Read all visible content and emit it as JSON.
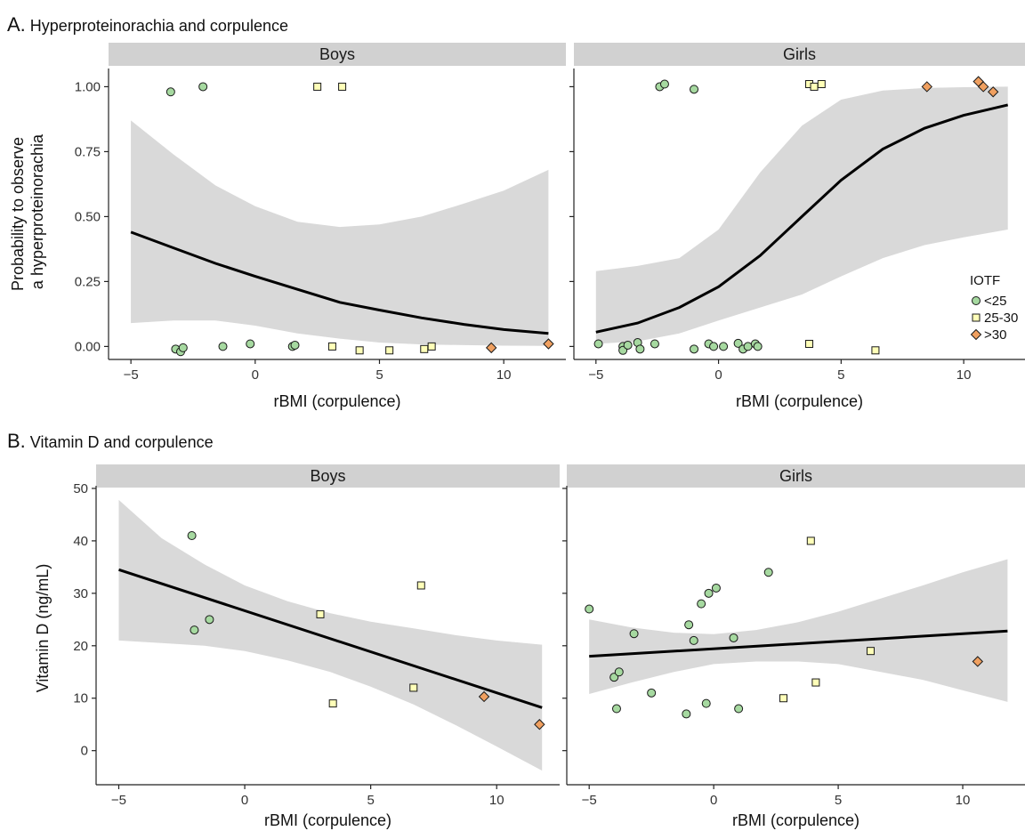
{
  "panels": [
    {
      "letter": "A.",
      "title": "Hyperproteinorachia and corpulence",
      "ylabel_lines": [
        "Probability to observe",
        "a hyperproteinorachia"
      ]
    },
    {
      "letter": "B.",
      "title": "Vitamin D and corpulence",
      "ylabel_lines": [
        "Vitamin D (ng/mL)"
      ]
    }
  ],
  "legend": {
    "title": "IOTF",
    "items": [
      {
        "label": "<25",
        "shape": "circle",
        "color": "#a6d9a0"
      },
      {
        "label": "25-30",
        "shape": "square",
        "color": "#ffffb8"
      },
      {
        "label": ">30",
        "shape": "diamond",
        "color": "#f0a060"
      }
    ]
  },
  "colors": {
    "circle": "#a6d9a0",
    "square": "#ffffb8",
    "diamond": "#f0a060",
    "band": "#d9d9d9",
    "strip": "#d1d1d1"
  },
  "chart_data": [
    {
      "type": "scatter",
      "panel": "A",
      "facet": "Boys",
      "xlabel": "rBMI (corpulence)",
      "ylabel": "Probability to observe a hyperproteinorachia",
      "xlim": [
        -5.9,
        12.5
      ],
      "ylim": [
        -0.05,
        1.07
      ],
      "xticks": [
        -5,
        0,
        5,
        10
      ],
      "yticks": [
        0.0,
        0.25,
        0.5,
        0.75,
        1.0
      ],
      "ytick_labels": [
        "0.00",
        "0.25",
        "0.50",
        "0.75",
        "1.00"
      ],
      "fit": {
        "x": [
          -5,
          -3.3,
          -1.6,
          0,
          1.7,
          3.4,
          5,
          6.7,
          8.4,
          10,
          11.8
        ],
        "y": [
          0.44,
          0.38,
          0.32,
          0.27,
          0.22,
          0.17,
          0.14,
          0.11,
          0.085,
          0.065,
          0.05
        ]
      },
      "band_upper": {
        "x": [
          -5,
          -3.3,
          -1.6,
          0,
          1.7,
          3.4,
          5,
          6.7,
          8.4,
          10,
          11.8
        ],
        "y": [
          0.87,
          0.74,
          0.62,
          0.54,
          0.48,
          0.46,
          0.47,
          0.5,
          0.55,
          0.6,
          0.68
        ]
      },
      "band_lower": {
        "x": [
          -5,
          -3.3,
          -1.6,
          0,
          1.7,
          3.4,
          5,
          6.7,
          8.4,
          10,
          11.8
        ],
        "y": [
          0.09,
          0.1,
          0.1,
          0.08,
          0.05,
          0.03,
          0.015,
          0.008,
          0.005,
          0.003,
          0.002
        ]
      },
      "points": [
        {
          "x": -3.4,
          "y": 0.98,
          "group": "<25"
        },
        {
          "x": -2.1,
          "y": 1.0,
          "group": "<25"
        },
        {
          "x": 2.5,
          "y": 1.0,
          "group": "25-30"
        },
        {
          "x": 3.5,
          "y": 1.0,
          "group": "25-30"
        },
        {
          "x": -3.2,
          "y": -0.01,
          "group": "<25"
        },
        {
          "x": -3.0,
          "y": -0.02,
          "group": "<25"
        },
        {
          "x": -2.9,
          "y": -0.005,
          "group": "<25"
        },
        {
          "x": -1.3,
          "y": 0.0,
          "group": "<25"
        },
        {
          "x": -0.2,
          "y": 0.01,
          "group": "<25"
        },
        {
          "x": 1.5,
          "y": 0.0,
          "group": "<25"
        },
        {
          "x": 1.6,
          "y": 0.005,
          "group": "<25"
        },
        {
          "x": 3.1,
          "y": 0.0,
          "group": "25-30"
        },
        {
          "x": 4.2,
          "y": -0.015,
          "group": "25-30"
        },
        {
          "x": 5.4,
          "y": -0.015,
          "group": "25-30"
        },
        {
          "x": 6.8,
          "y": -0.01,
          "group": "25-30"
        },
        {
          "x": 7.1,
          "y": 0.0,
          "group": "25-30"
        },
        {
          "x": 9.5,
          "y": -0.005,
          "group": ">30"
        },
        {
          "x": 11.8,
          "y": 0.01,
          "group": ">30"
        }
      ]
    },
    {
      "type": "scatter",
      "panel": "A",
      "facet": "Girls",
      "xlabel": "rBMI (corpulence)",
      "ylabel": "Probability to observe a hyperproteinorachia",
      "xlim": [
        -5.9,
        12.5
      ],
      "ylim": [
        -0.05,
        1.07
      ],
      "xticks": [
        -5,
        0,
        5,
        10
      ],
      "yticks": [
        0.0,
        0.25,
        0.5,
        0.75,
        1.0
      ],
      "ytick_labels": [
        "0.00",
        "0.25",
        "0.50",
        "0.75",
        "1.00"
      ],
      "fit": {
        "x": [
          -5,
          -3.3,
          -1.6,
          0,
          1.7,
          3.4,
          5,
          6.7,
          8.4,
          10,
          11.8
        ],
        "y": [
          0.055,
          0.09,
          0.15,
          0.23,
          0.35,
          0.5,
          0.64,
          0.76,
          0.84,
          0.89,
          0.93
        ]
      },
      "band_upper": {
        "x": [
          -5,
          -3.3,
          -1.6,
          0,
          1.7,
          3.4,
          5,
          6.7,
          8.4,
          10,
          11.8
        ],
        "y": [
          0.29,
          0.31,
          0.34,
          0.45,
          0.67,
          0.85,
          0.95,
          0.985,
          0.995,
          0.998,
          1.0
        ]
      },
      "band_lower": {
        "x": [
          -5,
          -3.3,
          -1.6,
          0,
          1.7,
          3.4,
          5,
          6.7,
          8.4,
          10,
          11.8
        ],
        "y": [
          0.01,
          0.02,
          0.05,
          0.1,
          0.15,
          0.2,
          0.27,
          0.34,
          0.39,
          0.42,
          0.45
        ]
      },
      "points": [
        {
          "x": -2.4,
          "y": 1.0,
          "group": "<25"
        },
        {
          "x": -2.2,
          "y": 1.01,
          "group": "<25"
        },
        {
          "x": -1.0,
          "y": 0.99,
          "group": "<25"
        },
        {
          "x": 3.7,
          "y": 1.01,
          "group": "25-30"
        },
        {
          "x": 3.9,
          "y": 1.0,
          "group": "25-30"
        },
        {
          "x": 4.2,
          "y": 1.01,
          "group": "25-30"
        },
        {
          "x": 8.5,
          "y": 1.0,
          "group": ">30"
        },
        {
          "x": 10.6,
          "y": 1.02,
          "group": ">30"
        },
        {
          "x": 10.8,
          "y": 1.0,
          "group": ">30"
        },
        {
          "x": 11.2,
          "y": 0.98,
          "group": ">30"
        },
        {
          "x": -4.9,
          "y": 0.01,
          "group": "<25"
        },
        {
          "x": -3.9,
          "y": 0.0,
          "group": "<25"
        },
        {
          "x": -3.9,
          "y": -0.015,
          "group": "<25"
        },
        {
          "x": -3.7,
          "y": 0.005,
          "group": "<25"
        },
        {
          "x": -3.3,
          "y": 0.015,
          "group": "<25"
        },
        {
          "x": -3.2,
          "y": -0.01,
          "group": "<25"
        },
        {
          "x": -2.6,
          "y": 0.01,
          "group": "<25"
        },
        {
          "x": -1.0,
          "y": -0.01,
          "group": "<25"
        },
        {
          "x": -0.4,
          "y": 0.01,
          "group": "<25"
        },
        {
          "x": -0.2,
          "y": 0.0,
          "group": "<25"
        },
        {
          "x": 0.2,
          "y": 0.0,
          "group": "<25"
        },
        {
          "x": 0.8,
          "y": 0.012,
          "group": "<25"
        },
        {
          "x": 1.0,
          "y": -0.01,
          "group": "<25"
        },
        {
          "x": 1.2,
          "y": 0.0,
          "group": "<25"
        },
        {
          "x": 1.5,
          "y": 0.01,
          "group": "<25"
        },
        {
          "x": 1.6,
          "y": 0.0,
          "group": "<25"
        },
        {
          "x": 3.7,
          "y": 0.01,
          "group": "25-30"
        },
        {
          "x": 6.4,
          "y": -0.015,
          "group": "25-30"
        }
      ]
    },
    {
      "type": "scatter",
      "panel": "B",
      "facet": "Boys",
      "xlabel": "rBMI (corpulence)",
      "ylabel": "Vitamin D (ng/mL)",
      "xlim": [
        -5.9,
        12.5
      ],
      "ylim": [
        -6.5,
        50.5
      ],
      "xticks": [
        -5,
        0,
        5,
        10
      ],
      "yticks": [
        0,
        10,
        20,
        30,
        40,
        50
      ],
      "ytick_labels": [
        "0",
        "10",
        "20",
        "30",
        "40",
        "50"
      ],
      "fit": {
        "x": [
          -5,
          11.8
        ],
        "y": [
          34.5,
          8.2
        ]
      },
      "band_upper": {
        "x": [
          -5,
          -3.3,
          -1.6,
          0,
          1.7,
          3.4,
          5,
          6.7,
          8.4,
          10,
          11.8
        ],
        "y": [
          47.8,
          40.5,
          35.5,
          31.5,
          28.5,
          26.2,
          24.6,
          23.3,
          22.0,
          21.0,
          20.2
        ]
      },
      "band_lower": {
        "x": [
          -5,
          -3.3,
          -1.6,
          0,
          1.7,
          3.4,
          5,
          6.7,
          8.4,
          10,
          11.8
        ],
        "y": [
          21.0,
          20.5,
          20.0,
          19.0,
          17.2,
          15.0,
          12.2,
          8.8,
          4.8,
          0.8,
          -3.8
        ]
      },
      "points": [
        {
          "x": -2.1,
          "y": 41.0,
          "group": "<25"
        },
        {
          "x": -2.0,
          "y": 23.0,
          "group": "<25"
        },
        {
          "x": -1.4,
          "y": 25.0,
          "group": "<25"
        },
        {
          "x": 3.0,
          "y": 26.0,
          "group": "25-30"
        },
        {
          "x": 3.5,
          "y": 9.0,
          "group": "25-30"
        },
        {
          "x": 6.7,
          "y": 12.0,
          "group": "25-30"
        },
        {
          "x": 7.0,
          "y": 31.5,
          "group": "25-30"
        },
        {
          "x": 9.5,
          "y": 10.3,
          "group": ">30"
        },
        {
          "x": 11.7,
          "y": 5.0,
          "group": ">30"
        }
      ]
    },
    {
      "type": "scatter",
      "panel": "B",
      "facet": "Girls",
      "xlabel": "rBMI (corpulence)",
      "ylabel": "Vitamin D (ng/mL)",
      "xlim": [
        -5.9,
        12.5
      ],
      "ylim": [
        -6.5,
        50.5
      ],
      "xticks": [
        -5,
        0,
        5,
        10
      ],
      "yticks": [
        0,
        10,
        20,
        30,
        40,
        50
      ],
      "ytick_labels": [
        "0",
        "10",
        "20",
        "30",
        "40",
        "50"
      ],
      "fit": {
        "x": [
          -5,
          11.8
        ],
        "y": [
          18.0,
          22.8
        ]
      },
      "band_upper": {
        "x": [
          -5,
          -3.3,
          -1.6,
          0,
          1.7,
          3.4,
          5,
          6.7,
          8.4,
          10,
          11.8
        ],
        "y": [
          25.0,
          23.5,
          22.5,
          22.2,
          23.0,
          24.5,
          26.5,
          29.0,
          31.5,
          34.0,
          36.5
        ]
      },
      "band_lower": {
        "x": [
          -5,
          -3.3,
          -1.6,
          0,
          1.7,
          3.4,
          5,
          6.7,
          8.4,
          10,
          11.8
        ],
        "y": [
          10.8,
          13.0,
          15.0,
          16.5,
          17.0,
          17.0,
          16.5,
          15.0,
          13.5,
          11.5,
          9.3
        ]
      },
      "points": [
        {
          "x": -5.0,
          "y": 27.0,
          "group": "<25"
        },
        {
          "x": -4.0,
          "y": 14.0,
          "group": "<25"
        },
        {
          "x": -3.9,
          "y": 8.0,
          "group": "<25"
        },
        {
          "x": -3.8,
          "y": 15.0,
          "group": "<25"
        },
        {
          "x": -3.2,
          "y": 22.3,
          "group": "<25"
        },
        {
          "x": -2.5,
          "y": 11.0,
          "group": "<25"
        },
        {
          "x": -1.1,
          "y": 7.0,
          "group": "<25"
        },
        {
          "x": -1.0,
          "y": 24.0,
          "group": "<25"
        },
        {
          "x": -0.8,
          "y": 21.0,
          "group": "<25"
        },
        {
          "x": -0.5,
          "y": 28.0,
          "group": "<25"
        },
        {
          "x": -0.3,
          "y": 9.0,
          "group": "<25"
        },
        {
          "x": -0.2,
          "y": 30.0,
          "group": "<25"
        },
        {
          "x": 0.1,
          "y": 31.0,
          "group": "<25"
        },
        {
          "x": 0.8,
          "y": 21.5,
          "group": "<25"
        },
        {
          "x": 1.0,
          "y": 8.0,
          "group": "<25"
        },
        {
          "x": 2.2,
          "y": 34.0,
          "group": "<25"
        },
        {
          "x": 2.8,
          "y": 10.0,
          "group": "25-30"
        },
        {
          "x": 3.9,
          "y": 40.0,
          "group": "25-30"
        },
        {
          "x": 4.1,
          "y": 13.0,
          "group": "25-30"
        },
        {
          "x": 6.3,
          "y": 19.0,
          "group": "25-30"
        },
        {
          "x": 10.6,
          "y": 17.0,
          "group": ">30"
        }
      ]
    }
  ]
}
